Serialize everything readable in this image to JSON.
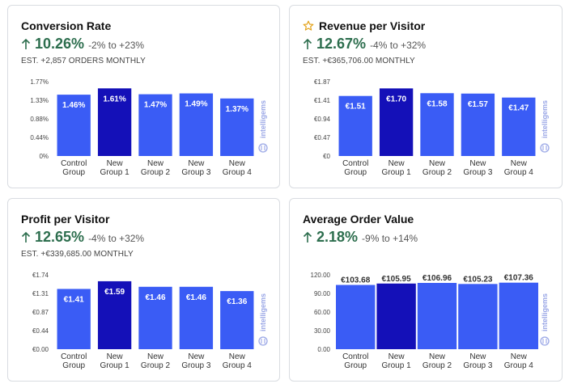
{
  "colors": {
    "bar": "#3a5cf5",
    "bar_highlight": "#1410b8",
    "positive": "#2d6e4e",
    "star": "#e3a21a",
    "watermark": "#9aa7e6"
  },
  "watermark_text": "intelligems",
  "cards": [
    {
      "title": "Conversion Rate",
      "has_star": false,
      "value": "10.26%",
      "range": "-2% to +23%",
      "est": "EST. +2,857 ORDERS MONTHLY",
      "chart_data": {
        "type": "bar",
        "categories": [
          [
            "Control",
            "Group"
          ],
          [
            "New",
            "Group 1"
          ],
          [
            "New",
            "Group 2"
          ],
          [
            "New",
            "Group 3"
          ],
          [
            "New",
            "Group 4"
          ]
        ],
        "values": [
          1.46,
          1.61,
          1.47,
          1.49,
          1.37
        ],
        "data_labels": [
          "1.46%",
          "1.61%",
          "1.47%",
          "1.49%",
          "1.37%"
        ],
        "y_ticks": [
          "0%",
          "0.44%",
          "0.88%",
          "1.33%",
          "1.77%"
        ],
        "ylim": [
          0,
          1.77
        ],
        "highlight_index": 1,
        "labels_inside": true
      }
    },
    {
      "title": "Revenue per Visitor",
      "has_star": true,
      "value": "12.67%",
      "range": "-4% to +32%",
      "est": "EST. +€365,706.00 MONTHLY",
      "chart_data": {
        "type": "bar",
        "categories": [
          [
            "Control",
            "Group"
          ],
          [
            "New",
            "Group 1"
          ],
          [
            "New",
            "Group 2"
          ],
          [
            "New",
            "Group 3"
          ],
          [
            "New",
            "Group 4"
          ]
        ],
        "values": [
          1.51,
          1.7,
          1.58,
          1.57,
          1.47
        ],
        "data_labels": [
          "€1.51",
          "€1.70",
          "€1.58",
          "€1.57",
          "€1.47"
        ],
        "y_ticks": [
          "€0",
          "€0.47",
          "€0.94",
          "€1.41",
          "€1.87"
        ],
        "ylim": [
          0,
          1.87
        ],
        "highlight_index": 1,
        "labels_inside": true
      }
    },
    {
      "title": "Profit per Visitor",
      "has_star": false,
      "value": "12.65%",
      "range": "-4% to +32%",
      "est": "EST. +€339,685.00 MONTHLY",
      "chart_data": {
        "type": "bar",
        "categories": [
          [
            "Control",
            "Group"
          ],
          [
            "New",
            "Group 1"
          ],
          [
            "New",
            "Group 2"
          ],
          [
            "New",
            "Group 3"
          ],
          [
            "New",
            "Group 4"
          ]
        ],
        "values": [
          1.41,
          1.59,
          1.46,
          1.46,
          1.36
        ],
        "data_labels": [
          "€1.41",
          "€1.59",
          "€1.46",
          "€1.46",
          "€1.36"
        ],
        "y_ticks": [
          "€0.00",
          "€0.44",
          "€0.87",
          "€1.31",
          "€1.74"
        ],
        "ylim": [
          0,
          1.74
        ],
        "highlight_index": 1,
        "labels_inside": true
      }
    },
    {
      "title": "Average Order Value",
      "has_star": false,
      "value": "2.18%",
      "range": "-9% to +14%",
      "est": "",
      "chart_data": {
        "type": "bar",
        "categories": [
          [
            "Control",
            "Group"
          ],
          [
            "New",
            "Group 1"
          ],
          [
            "New",
            "Group 2"
          ],
          [
            "New",
            "Group 3"
          ],
          [
            "New",
            "Group 4"
          ]
        ],
        "values": [
          103.68,
          105.95,
          106.96,
          105.23,
          107.36
        ],
        "data_labels": [
          "€103.68",
          "€105.95",
          "€106.96",
          "€105.23",
          "€107.36"
        ],
        "y_ticks": [
          "0.00",
          "30.00",
          "60.00",
          "90.00",
          "120.00"
        ],
        "ylim": [
          0,
          120
        ],
        "highlight_index": 1,
        "labels_inside": false
      }
    }
  ]
}
